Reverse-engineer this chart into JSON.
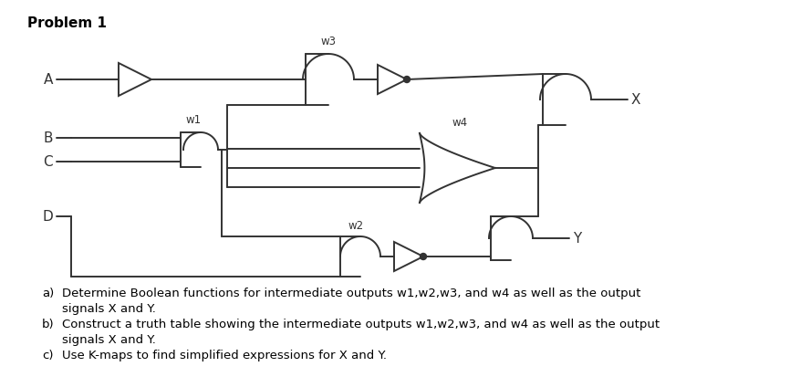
{
  "title": "Problem 1",
  "bg": "#ffffff",
  "lc": "#333333",
  "lw": 1.4,
  "inputs": [
    "A",
    "B",
    "C",
    "D"
  ],
  "outputs": [
    "X",
    "Y"
  ],
  "wire_labels": [
    "w1",
    "w2",
    "w3",
    "w4"
  ],
  "qa": "Determine Boolean functions for intermediate outputs w1,w2,w3, and w4 as well as the output",
  "qa2": "signals X and Y.",
  "qb": "Construct a truth table showing the intermediate outputs w1,w2,w3, and w4 as well as the output",
  "qb2": "signals X and Y.",
  "qc": "Use K-maps to find simplified expressions for X and Y."
}
